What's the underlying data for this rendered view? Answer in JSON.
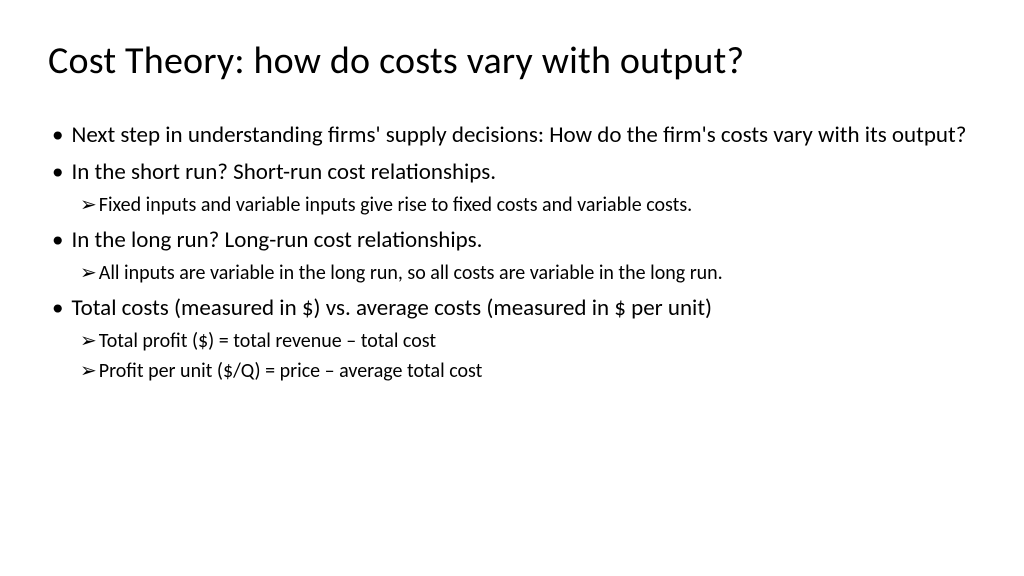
{
  "title": "Cost Theory: how do costs vary with output?",
  "bullets": {
    "b1": "Next step in understanding firms' supply decisions:  How do the firm's costs vary with its output?",
    "b2": "In the short run?  Short-run cost relationships.",
    "b2s1": "Fixed inputs and variable inputs give rise to fixed costs and variable costs.",
    "b3": "In the long run?  Long-run cost relationships.",
    "b3s1": "All inputs are variable in the long run, so all costs are variable in the long run.",
    "b4": "Total costs (measured in $) vs. average costs (measured in $ per unit)",
    "b4s1": "Total profit ($) = total revenue – total cost",
    "b4s2": "Profit per unit ($/Q) = price – average total cost"
  },
  "styling": {
    "background_color": "#ffffff",
    "text_color": "#000000",
    "title_fontsize": 38,
    "bullet_fontsize": 23,
    "sub_fontsize": 20,
    "font_family": "Calibri",
    "bullet_char": "•",
    "arrow_char": "➢"
  }
}
